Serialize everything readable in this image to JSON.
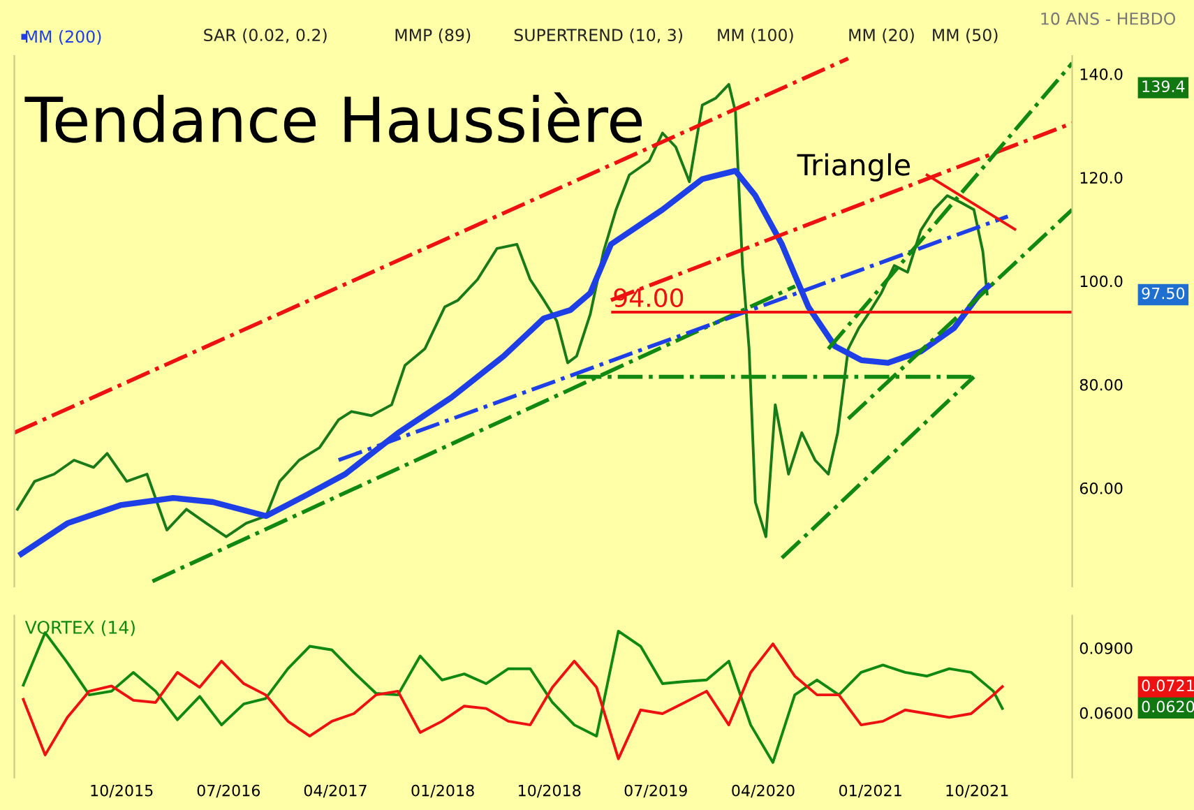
{
  "chart_data": [
    {
      "type": "line",
      "xlim": [
        "2014-12-30",
        "2022-06-02"
      ],
      "ylim": [
        41,
        143.5
      ],
      "yticks": [
        {
          "value": 60,
          "label": "60.00"
        },
        {
          "value": 80,
          "label": "80.00"
        },
        {
          "value": 100,
          "label": "100.0"
        },
        {
          "value": 120,
          "label": "120.0"
        },
        {
          "value": 140,
          "label": "140.0"
        }
      ],
      "tick_labels": "y",
      "grid": false,
      "legend": "top left",
      "series": [
        {
          "color": "#1a7a1a",
          "x": [
            "2015-01-07",
            "2015-02-20",
            "2015-04-11",
            "2015-06-01",
            "2015-07-21",
            "2015-08-25",
            "2015-10-14",
            "2015-12-05",
            "2016-01-25",
            "2016-03-15",
            "2016-05-05",
            "2016-06-25",
            "2016-08-15",
            "2016-10-05",
            "2016-11-09",
            "2016-12-29",
            "2017-02-19",
            "2017-04-09",
            "2017-05-12",
            "2017-07-02",
            "2017-08-23",
            "2017-09-26",
            "2017-11-16",
            "2018-01-06",
            "2018-02-09",
            "2018-03-31",
            "2018-05-20",
            "2018-07-10",
            "2018-08-13",
            "2018-09-17",
            "2018-10-20",
            "2018-11-17",
            "2018-12-10",
            "2019-01-14",
            "2019-02-17",
            "2019-03-21",
            "2019-04-24",
            "2019-06-14",
            "2019-07-18",
            "2019-08-21",
            "2019-09-25",
            "2019-10-28",
            "2019-12-01",
            "2020-01-04",
            "2020-01-21",
            "2020-02-08",
            "2020-02-25",
            "2020-03-12",
            "2020-04-08",
            "2020-05-02",
            "2020-06-05",
            "2020-07-09",
            "2020-08-12",
            "2020-09-15",
            "2020-10-09",
            "2020-11-05",
            "2020-12-02",
            "2020-12-26",
            "2021-01-29",
            "2021-03-03",
            "2021-04-06",
            "2021-05-10",
            "2021-06-13",
            "2021-07-17",
            "2021-08-20",
            "2021-09-23",
            "2021-10-16",
            "2021-10-27"
          ],
          "values": [
            55.9,
            61.3,
            62.7,
            65.4,
            64.0,
            66.7,
            61.3,
            62.7,
            51.9,
            55.9,
            53.2,
            50.6,
            53.2,
            54.6,
            61.3,
            65.4,
            67.8,
            73.2,
            74.8,
            74.0,
            76.1,
            83.7,
            86.9,
            95.0,
            96.3,
            100.3,
            106.3,
            107.1,
            100.3,
            96.3,
            92.3,
            84.2,
            85.5,
            93.6,
            105.7,
            113.8,
            120.5,
            123.2,
            128.6,
            125.9,
            119.2,
            134.0,
            135.3,
            138.0,
            132.7,
            103.0,
            86.9,
            57.3,
            50.6,
            76.1,
            62.7,
            70.7,
            65.4,
            62.7,
            70.7,
            86.9,
            90.9,
            93.6,
            97.7,
            103.0,
            101.7,
            109.8,
            113.8,
            116.5,
            115.2,
            113.8,
            105.7,
            97.5
          ]
        },
        {
          "name": "MM (200)",
          "color": "#1f3fe6",
          "x": [
            "2015-01-17",
            "2015-05-15",
            "2015-09-28",
            "2016-02-10",
            "2016-05-22",
            "2016-10-05",
            "2017-01-15",
            "2017-04-26",
            "2017-09-09",
            "2018-01-23",
            "2018-06-06",
            "2018-09-17",
            "2018-11-24",
            "2019-01-14",
            "2019-03-08",
            "2019-07-18",
            "2019-10-28",
            "2020-01-21",
            "2020-03-12",
            "2020-05-19",
            "2020-07-26",
            "2020-10-02",
            "2020-12-09",
            "2021-02-15",
            "2021-05-10",
            "2021-08-03",
            "2021-10-10",
            "2021-10-30"
          ],
          "values": [
            47.3,
            53.2,
            56.7,
            58.1,
            57.3,
            54.6,
            58.6,
            62.7,
            70.7,
            77.5,
            85.5,
            92.8,
            94.4,
            97.7,
            107.1,
            113.8,
            119.7,
            121.3,
            116.5,
            107.1,
            95.0,
            87.4,
            84.7,
            84.2,
            86.4,
            90.9,
            97.7,
            99.0
          ]
        },
        {
          "color": "#ee1111",
          "line_style": "dashed",
          "x": [
            "2014-12-30",
            "2020-11-05"
          ],
          "values": [
            70.7,
            143.0
          ]
        },
        {
          "color": "#ee1111",
          "line_style": "dashed",
          "x": [
            "2019-03-08",
            "2022-06-02"
          ],
          "values": [
            96.3,
            130.5
          ]
        },
        {
          "color": "#118811",
          "line_style": "dashed",
          "x": [
            "2015-12-19",
            "2020-06-22"
          ],
          "values": [
            42.0,
            99.0
          ]
        },
        {
          "color": "#1f3fe6",
          "line_style": "dashed",
          "x": [
            "2017-04-09",
            "2021-12-19"
          ],
          "values": [
            65.4,
            112.5
          ]
        },
        {
          "color": "#118811",
          "line_style": "dashed",
          "x": [
            "2018-12-10",
            "2021-09-23"
          ],
          "values": [
            81.5,
            81.5
          ]
        },
        {
          "color": "#118811",
          "line_style": "dashed",
          "x": [
            "2020-05-19",
            "2021-09-23"
          ],
          "values": [
            46.5,
            81.5
          ]
        },
        {
          "color": "#118811",
          "line_style": "dashed",
          "x": [
            "2020-09-15",
            "2022-06-02"
          ],
          "values": [
            86.9,
            142.1
          ]
        },
        {
          "color": "#118811",
          "line_style": "dashed",
          "x": [
            "2020-11-05",
            "2022-06-02"
          ],
          "values": [
            73.4,
            113.8
          ]
        },
        {
          "color": "#ee1111",
          "x": [
            "2021-05-26",
            "2022-01-06"
          ],
          "values": [
            120.5,
            110.0
          ]
        },
        {
          "color": "#ee1111",
          "x": [
            "2019-03-12",
            "2022-06-02"
          ],
          "values": [
            94.0,
            94.0
          ]
        }
      ],
      "annotations": [
        "10 ANS - HEBDO",
        "SAR (0.02, 0.2)",
        "MMP (89)",
        "SUPERTREND (10, 3)",
        "MM (100)",
        "MM (20)",
        "MM (50)",
        "Tendance Haussière",
        "Triangle",
        {
          "text": "94.00",
          "x": "2019-03-12",
          "y": 94.0
        },
        "139.4",
        "97.50"
      ]
    },
    {
      "type": "line",
      "title": "VORTEX (14)",
      "xlim": [
        "2014-12-30",
        "2022-06-02"
      ],
      "ylim": [
        0.03,
        0.105
      ],
      "xticks": [
        {
          "value": "2015-10-01",
          "label": "10/2015"
        },
        {
          "value": "2016-07-01",
          "label": "07/2016"
        },
        {
          "value": "2017-04-01",
          "label": "04/2017"
        },
        {
          "value": "2018-01-01",
          "label": "01/2018"
        },
        {
          "value": "2018-10-01",
          "label": "10/2018"
        },
        {
          "value": "2019-07-01",
          "label": "07/2019"
        },
        {
          "value": "2020-04-01",
          "label": "04/2020"
        },
        {
          "value": "2021-01-01",
          "label": "01/2021"
        },
        {
          "value": "2021-10-01",
          "label": "10/2021"
        }
      ],
      "yticks": [
        {
          "value": 0.09,
          "label": "0.0900"
        },
        {
          "value": 0.06,
          "label": "0.0600"
        }
      ],
      "grid": false,
      "series": [
        {
          "color": "#118811",
          "x": [
            "2015-01-22",
            "2015-03-19",
            "2015-05-15",
            "2015-07-10",
            "2015-09-05",
            "2015-10-31",
            "2015-12-27",
            "2016-02-21",
            "2016-04-18",
            "2016-06-13",
            "2016-08-09",
            "2016-10-04",
            "2016-11-30",
            "2017-01-25",
            "2017-03-23",
            "2017-05-18",
            "2017-07-14",
            "2017-09-08",
            "2017-11-04",
            "2017-12-30",
            "2018-02-25",
            "2018-04-22",
            "2018-06-18",
            "2018-08-13",
            "2018-10-09",
            "2018-12-04",
            "2019-01-30",
            "2019-03-27",
            "2019-05-23",
            "2019-07-18",
            "2019-09-13",
            "2019-11-08",
            "2020-01-04",
            "2020-02-29",
            "2020-04-26",
            "2020-06-21",
            "2020-08-17",
            "2020-10-12",
            "2020-12-08",
            "2021-02-02",
            "2021-03-31",
            "2021-05-26",
            "2021-07-22",
            "2021-09-16",
            "2021-11-12",
            "2021-12-05"
          ],
          "values": [
            0.0728,
            0.0971,
            0.0832,
            0.0683,
            0.07,
            0.0787,
            0.07,
            0.0568,
            0.0676,
            0.0544,
            0.0641,
            0.0666,
            0.0804,
            0.0908,
            0.0891,
            0.0787,
            0.069,
            0.0683,
            0.0863,
            0.0752,
            0.078,
            0.0735,
            0.0804,
            0.0804,
            0.0648,
            0.0544,
            0.0492,
            0.0978,
            0.0908,
            0.0735,
            0.0745,
            0.0752,
            0.0839,
            0.0544,
            0.037,
            0.0683,
            0.0752,
            0.0683,
            0.0787,
            0.0821,
            0.0787,
            0.077,
            0.0804,
            0.0787,
            0.07,
            0.062
          ]
        },
        {
          "color": "#ee1111",
          "x": [
            "2015-01-22",
            "2015-03-19",
            "2015-05-15",
            "2015-07-10",
            "2015-09-05",
            "2015-10-31",
            "2015-12-27",
            "2016-02-21",
            "2016-04-18",
            "2016-06-13",
            "2016-08-09",
            "2016-10-04",
            "2016-11-30",
            "2017-01-25",
            "2017-03-23",
            "2017-05-18",
            "2017-07-14",
            "2017-09-08",
            "2017-11-04",
            "2017-12-30",
            "2018-02-25",
            "2018-04-22",
            "2018-06-18",
            "2018-08-13",
            "2018-10-09",
            "2018-12-04",
            "2019-01-30",
            "2019-03-27",
            "2019-05-23",
            "2019-07-18",
            "2019-09-13",
            "2019-11-08",
            "2020-01-04",
            "2020-02-29",
            "2020-04-26",
            "2020-06-21",
            "2020-08-17",
            "2020-10-12",
            "2020-12-08",
            "2021-02-02",
            "2021-03-31",
            "2021-05-26",
            "2021-07-22",
            "2021-09-16",
            "2021-11-12",
            "2021-12-05"
          ],
          "values": [
            0.0662,
            0.0405,
            0.0579,
            0.07,
            0.0724,
            0.0658,
            0.0648,
            0.0787,
            0.0718,
            0.0839,
            0.0735,
            0.0683,
            0.0561,
            0.0492,
            0.0561,
            0.0596,
            0.0683,
            0.07,
            0.0509,
            0.0561,
            0.0631,
            0.062,
            0.0561,
            0.0544,
            0.0718,
            0.0839,
            0.0718,
            0.0387,
            0.0613,
            0.0596,
            0.0648,
            0.07,
            0.0544,
            0.0787,
            0.0919,
            0.077,
            0.0683,
            0.0683,
            0.0544,
            0.0561,
            0.0613,
            0.0596,
            0.0579,
            0.0596,
            0.0683,
            0.0721
          ]
        }
      ],
      "annotations": [
        "0.0721",
        "0.0620"
      ]
    }
  ]
}
